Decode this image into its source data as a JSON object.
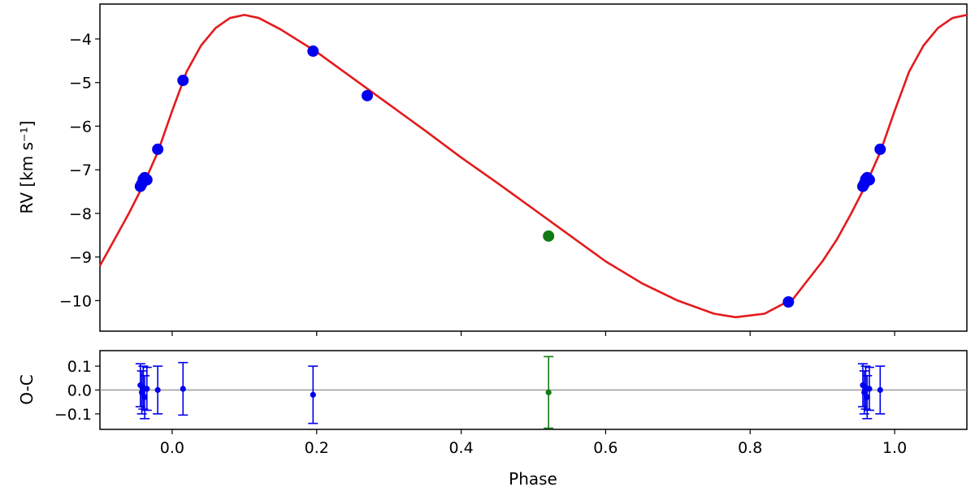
{
  "chart_data": [
    {
      "type": "scatter",
      "panel": "radial-velocity",
      "ylabel": "RV [km s⁻¹]",
      "xlim": [
        -0.1,
        1.1
      ],
      "ylim": [
        -10.7,
        -3.2
      ],
      "yticks": [
        -4,
        -5,
        -6,
        -7,
        -8,
        -9,
        -10
      ],
      "xticks": [
        0.0,
        0.2,
        0.4,
        0.6,
        0.8,
        1.0
      ],
      "grid": false,
      "model": {
        "name": "",
        "color": "#e41a1c",
        "x": [
          -0.1,
          -0.08,
          -0.06,
          -0.04,
          -0.02,
          0.0,
          0.02,
          0.04,
          0.06,
          0.08,
          0.1,
          0.12,
          0.15,
          0.2,
          0.25,
          0.3,
          0.35,
          0.4,
          0.45,
          0.5,
          0.55,
          0.6,
          0.65,
          0.7,
          0.75,
          0.78,
          0.82,
          0.86,
          0.9,
          0.92,
          0.94,
          0.96,
          0.98,
          1.0,
          1.02,
          1.04,
          1.06,
          1.08,
          1.1
        ],
        "y": [
          -9.2,
          -8.6,
          -8.0,
          -7.35,
          -6.6,
          -5.65,
          -4.75,
          -4.15,
          -3.75,
          -3.52,
          -3.45,
          -3.52,
          -3.78,
          -4.3,
          -4.9,
          -5.5,
          -6.1,
          -6.72,
          -7.3,
          -7.9,
          -8.5,
          -9.1,
          -9.6,
          -10.0,
          -10.3,
          -10.38,
          -10.3,
          -9.95,
          -9.1,
          -8.6,
          -8.0,
          -7.35,
          -6.6,
          -5.65,
          -4.75,
          -4.15,
          -3.75,
          -3.52,
          -3.45
        ]
      },
      "series": [
        {
          "name": "",
          "color": "#0000ee",
          "x": [
            -0.044,
            -0.042,
            -0.04,
            -0.038,
            -0.035,
            -0.02,
            0.015,
            0.195,
            0.27,
            0.853,
            0.956,
            0.958,
            0.96,
            0.962,
            0.965,
            0.98
          ],
          "y": [
            -7.38,
            -7.32,
            -7.22,
            -7.18,
            -7.23,
            -6.53,
            -4.95,
            -4.28,
            -5.3,
            -10.03,
            -7.38,
            -7.32,
            -7.22,
            -7.18,
            -7.23,
            -6.53
          ]
        },
        {
          "name": "",
          "color": "#127a12",
          "x": [
            0.521
          ],
          "y": [
            -8.52
          ]
        }
      ]
    },
    {
      "type": "scatter",
      "panel": "residuals",
      "xlabel": "Phase",
      "ylabel": "O-C",
      "xlim": [
        -0.1,
        1.1
      ],
      "ylim": [
        -0.165,
        0.165
      ],
      "yticks": [
        0.1,
        0.0,
        -0.1
      ],
      "yticklabels": [
        "0.1",
        "0.0",
        "−0.1"
      ],
      "xticks": [
        0.0,
        0.2,
        0.4,
        0.6,
        0.8,
        1.0
      ],
      "xticklabels": [
        "0.0",
        "0.2",
        "0.4",
        "0.6",
        "0.8",
        "1.0"
      ],
      "zero_line_color": "#999999",
      "series": [
        {
          "name": "",
          "color": "#0000ee",
          "x": [
            -0.044,
            -0.042,
            -0.04,
            -0.038,
            -0.035,
            -0.02,
            0.015,
            0.195,
            0.956,
            0.958,
            0.96,
            0.962,
            0.965,
            0.98
          ],
          "y": [
            0.02,
            -0.01,
            0.01,
            -0.03,
            0.005,
            0.0,
            0.005,
            -0.02,
            0.02,
            -0.01,
            0.01,
            -0.03,
            0.005,
            0.0
          ],
          "err": [
            0.09,
            0.09,
            0.09,
            0.09,
            0.09,
            0.1,
            0.11,
            0.12,
            0.09,
            0.09,
            0.09,
            0.09,
            0.09,
            0.1
          ]
        },
        {
          "name": "",
          "color": "#127a12",
          "x": [
            0.521
          ],
          "y": [
            -0.01
          ],
          "err": [
            0.15
          ]
        }
      ]
    }
  ]
}
